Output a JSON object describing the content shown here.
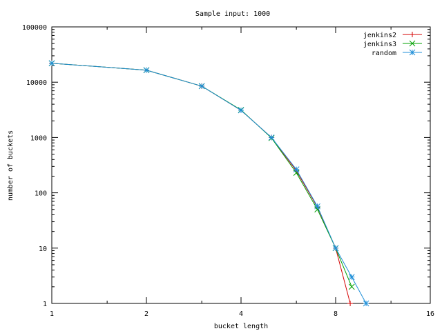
{
  "chart_data": {
    "type": "line",
    "title": "Sample input: 1000",
    "xlabel": "bucket length",
    "ylabel": "number of buckets",
    "x_scale": "log2",
    "y_scale": "log10",
    "xlim": [
      1,
      16
    ],
    "ylim": [
      1,
      100000
    ],
    "x_ticks": [
      {
        "value": 1,
        "label": "1"
      },
      {
        "value": 2,
        "label": "2"
      },
      {
        "value": 4,
        "label": "4"
      },
      {
        "value": 8,
        "label": "8"
      },
      {
        "value": 16,
        "label": "16"
      }
    ],
    "y_ticks": [
      {
        "value": 1,
        "label": "1"
      },
      {
        "value": 10,
        "label": "10"
      },
      {
        "value": 100,
        "label": "100"
      },
      {
        "value": 1000,
        "label": "1000"
      },
      {
        "value": 10000,
        "label": "10000"
      },
      {
        "value": 100000,
        "label": "100000"
      }
    ],
    "grid": false,
    "legend_position": "top-right",
    "series": [
      {
        "name": "jenkins2",
        "color": "#d40000",
        "marker": "plus",
        "points": [
          [
            1,
            22000
          ],
          [
            2,
            16500
          ],
          [
            3,
            8500
          ],
          [
            4,
            3100
          ],
          [
            5,
            1000
          ],
          [
            6,
            250
          ],
          [
            7,
            55
          ],
          [
            8,
            10
          ],
          [
            8.9,
            1
          ]
        ]
      },
      {
        "name": "jenkins3",
        "color": "#00a000",
        "marker": "cross",
        "points": [
          [
            1,
            22000
          ],
          [
            2,
            16500
          ],
          [
            3,
            8500
          ],
          [
            4,
            3150
          ],
          [
            5,
            980
          ],
          [
            6,
            230
          ],
          [
            7,
            50
          ],
          [
            8,
            10
          ],
          [
            9,
            2
          ]
        ]
      },
      {
        "name": "random",
        "color": "#1f8fd8",
        "marker": "star",
        "points": [
          [
            1,
            22000
          ],
          [
            2,
            16500
          ],
          [
            3,
            8500
          ],
          [
            4,
            3100
          ],
          [
            5,
            1000
          ],
          [
            6,
            265
          ],
          [
            7,
            57
          ],
          [
            8,
            10
          ],
          [
            9,
            3
          ],
          [
            10,
            1
          ]
        ]
      }
    ]
  }
}
